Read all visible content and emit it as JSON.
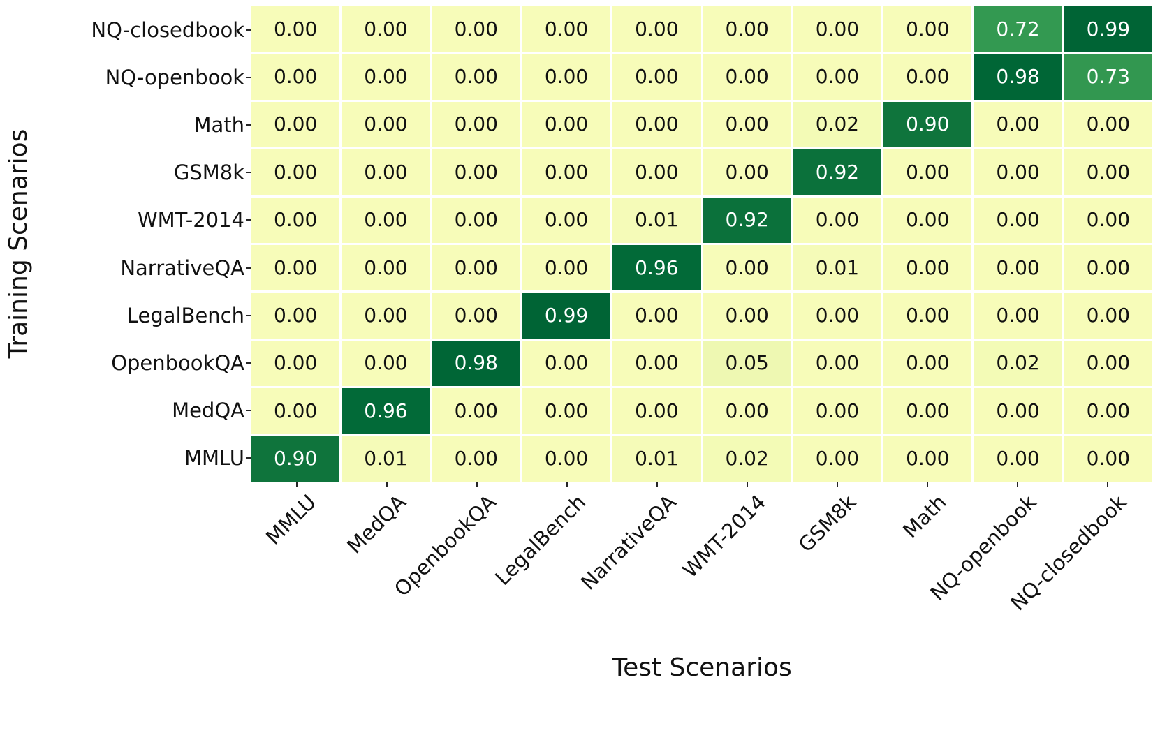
{
  "chart_data": {
    "type": "heatmap",
    "title": "",
    "xlabel": "Test Scenarios",
    "ylabel": "Training Scenarios",
    "x_categories": [
      "MMLU",
      "MedQA",
      "OpenbookQA",
      "LegalBench",
      "NarrativeQA",
      "WMT-2014",
      "GSM8k",
      "Math",
      "NQ-openbook",
      "NQ-closedbook"
    ],
    "y_categories": [
      "NQ-closedbook",
      "NQ-openbook",
      "Math",
      "GSM8k",
      "WMT-2014",
      "NarrativeQA",
      "LegalBench",
      "OpenbookQA",
      "MedQA",
      "MMLU"
    ],
    "values": [
      [
        0.0,
        0.0,
        0.0,
        0.0,
        0.0,
        0.0,
        0.0,
        0.0,
        0.72,
        0.99
      ],
      [
        0.0,
        0.0,
        0.0,
        0.0,
        0.0,
        0.0,
        0.0,
        0.0,
        0.98,
        0.73
      ],
      [
        0.0,
        0.0,
        0.0,
        0.0,
        0.0,
        0.0,
        0.02,
        0.9,
        0.0,
        0.0
      ],
      [
        0.0,
        0.0,
        0.0,
        0.0,
        0.0,
        0.0,
        0.92,
        0.0,
        0.0,
        0.0
      ],
      [
        0.0,
        0.0,
        0.0,
        0.0,
        0.01,
        0.92,
        0.0,
        0.0,
        0.0,
        0.0
      ],
      [
        0.0,
        0.0,
        0.0,
        0.0,
        0.96,
        0.0,
        0.01,
        0.0,
        0.0,
        0.0
      ],
      [
        0.0,
        0.0,
        0.0,
        0.99,
        0.0,
        0.0,
        0.0,
        0.0,
        0.0,
        0.0
      ],
      [
        0.0,
        0.0,
        0.98,
        0.0,
        0.0,
        0.05,
        0.0,
        0.0,
        0.02,
        0.0
      ],
      [
        0.0,
        0.96,
        0.0,
        0.0,
        0.0,
        0.0,
        0.0,
        0.0,
        0.0,
        0.0
      ],
      [
        0.9,
        0.01,
        0.0,
        0.0,
        0.01,
        0.02,
        0.0,
        0.0,
        0.0,
        0.0
      ]
    ],
    "value_format": "0.00",
    "colormap": "YlGn",
    "grid_on": false,
    "legend": "none",
    "color_low": "#f8fabd",
    "color_high": "#00552e",
    "cell_text_color_dark": "#111111",
    "cell_text_color_light": "#ffffff",
    "background": "#ffffff"
  }
}
